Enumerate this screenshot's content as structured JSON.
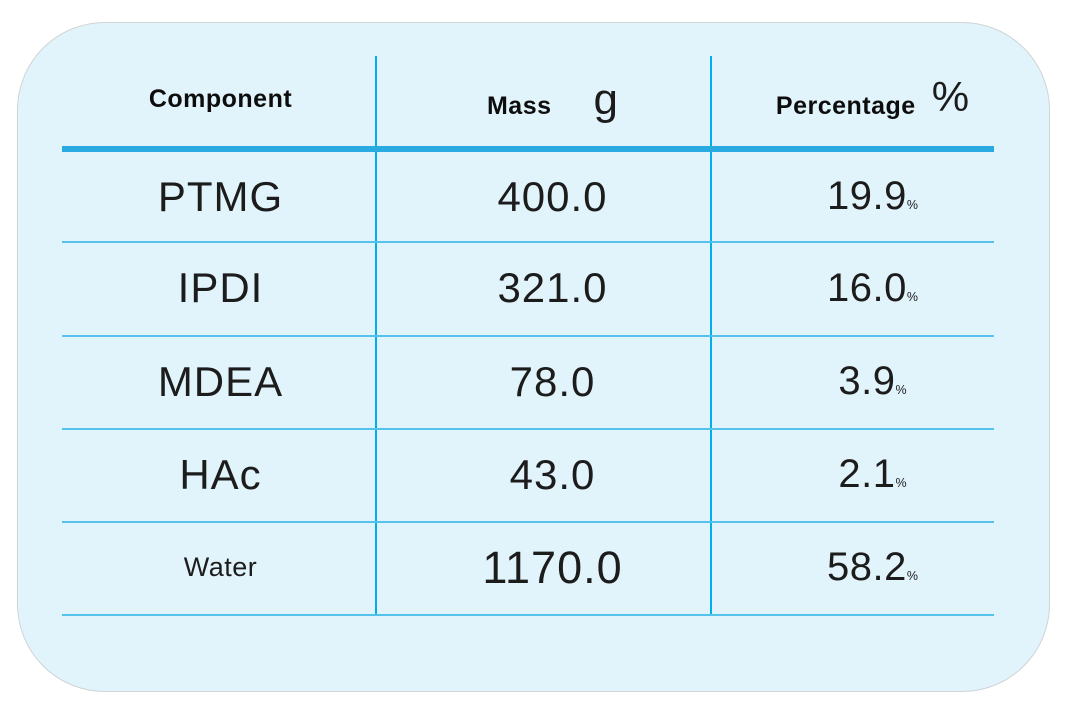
{
  "colors": {
    "card_background": "#e2f4fb",
    "card_border": "#cfd4d6",
    "header_rule": "#29abe2",
    "column_rule": "#00aeef",
    "row_rule": "#55c2ee",
    "text": "#1c1c1c"
  },
  "header": {
    "component": "Component",
    "mass_label": "Mass",
    "mass_unit": "g",
    "percentage_label": "Percentage",
    "percentage_unit": "%"
  },
  "rows": [
    {
      "component": "PTMG",
      "mass": "400.0",
      "percent_value": "19.9",
      "percent_sign": "%"
    },
    {
      "component": "IPDI",
      "mass": "321.0",
      "percent_value": "16.0",
      "percent_sign": "%"
    },
    {
      "component": "MDEA",
      "mass": "78.0",
      "percent_value": "3.9",
      "percent_sign": "%"
    },
    {
      "component": "HAc",
      "mass": "43.0",
      "percent_value": "2.1",
      "percent_sign": "%"
    },
    {
      "component": "Water",
      "mass": "1170.0",
      "percent_value": "58.2",
      "percent_sign": "%"
    }
  ],
  "chart_data": {
    "type": "table",
    "columns": [
      "Component",
      "Mass g",
      "Percentage %"
    ],
    "rows": [
      [
        "PTMG",
        400.0,
        "19.9%"
      ],
      [
        "IPDI",
        321.0,
        "16.0%"
      ],
      [
        "MDEA",
        78.0,
        "3.9%"
      ],
      [
        "HAc",
        43.0,
        "2.1%"
      ],
      [
        "Water",
        1170.0,
        "58.2%"
      ]
    ]
  }
}
